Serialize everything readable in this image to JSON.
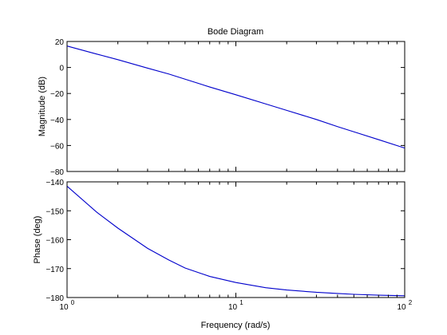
{
  "chart_data": [
    {
      "type": "line",
      "title": "Bode Diagram",
      "ylabel": "Magnitude (dB)",
      "xlabel": "",
      "xscale": "log",
      "xlim": [
        1,
        100
      ],
      "ylim": [
        -80,
        20
      ],
      "yticks": [
        20,
        0,
        -20,
        -40,
        -60,
        -80
      ],
      "ytick_labels": [
        "20",
        "0",
        "−20",
        "−40",
        "−60",
        "−80"
      ],
      "grid": false,
      "series": [
        {
          "color": "#0000cc",
          "x": [
            1,
            1.5,
            2,
            3,
            4,
            5,
            7,
            10,
            15,
            20,
            30,
            40,
            50,
            70,
            100
          ],
          "y": [
            16.5,
            10.3,
            6.0,
            -0.5,
            -5.0,
            -9.0,
            -15.0,
            -21.0,
            -28.0,
            -33.0,
            -40.0,
            -45.5,
            -49.5,
            -55.5,
            -62.0
          ]
        }
      ]
    },
    {
      "type": "line",
      "xlabel": "Frequency  (rad/s)",
      "ylabel": "Phase (deg)",
      "xscale": "log",
      "xlim": [
        1,
        100
      ],
      "ylim": [
        -180,
        -140
      ],
      "yticks": [
        -140,
        -150,
        -160,
        -170,
        -180
      ],
      "ytick_labels": [
        "−140",
        "−150",
        "−160",
        "−170",
        "−180"
      ],
      "xtick_labels": [
        {
          "base": "10",
          "exp": "0"
        },
        {
          "base": "10",
          "exp": "1"
        },
        {
          "base": "10",
          "exp": "2"
        }
      ],
      "grid": false,
      "series": [
        {
          "color": "#0000cc",
          "x": [
            1,
            1.5,
            2,
            3,
            4,
            5,
            7,
            10,
            15,
            20,
            30,
            40,
            50,
            70,
            100
          ],
          "y": [
            -141.5,
            -150.5,
            -156.0,
            -163.0,
            -167.0,
            -169.8,
            -172.7,
            -174.8,
            -176.6,
            -177.4,
            -178.2,
            -178.6,
            -178.9,
            -179.2,
            -179.4
          ]
        }
      ]
    }
  ]
}
